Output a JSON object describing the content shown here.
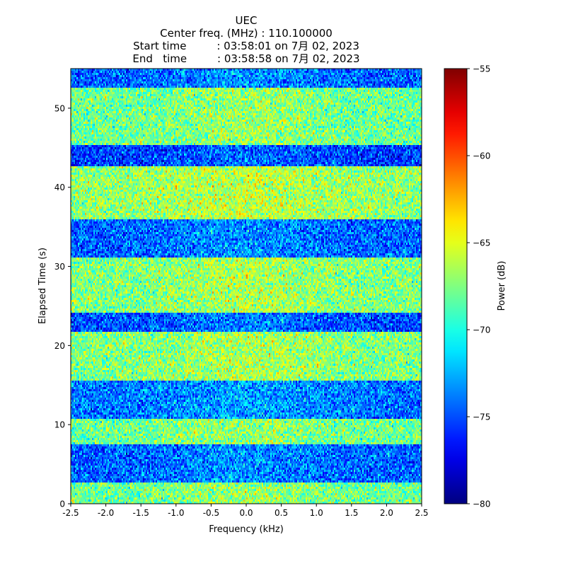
{
  "chart_data": {
    "type": "heatmap",
    "title_lines": [
      "UEC",
      "Center freq. (MHz) : 110.100000",
      "Start time         : 03:58:01 on 7月 02, 2023",
      "End   time         : 03:58:58 on 7月 02, 2023"
    ],
    "xlabel": "Frequency (kHz)",
    "ylabel": "Elapsed Time (s)",
    "xlim": [
      -2.5,
      2.5
    ],
    "ylim": [
      0,
      55
    ],
    "xticks": [
      "-2.5",
      "-2.0",
      "-1.5",
      "-1.0",
      "-0.5",
      "0.0",
      "0.5",
      "1.0",
      "1.5",
      "2.0",
      "2.5"
    ],
    "xtick_values": [
      -2.5,
      -2.0,
      -1.5,
      -1.0,
      -0.5,
      0.0,
      0.5,
      1.0,
      1.5,
      2.0,
      2.5
    ],
    "yticks": [
      "0",
      "10",
      "20",
      "30",
      "40",
      "50"
    ],
    "ytick_values": [
      0,
      10,
      20,
      30,
      40,
      50
    ],
    "colorbar": {
      "label": "Power (dB)",
      "range": [
        -80,
        -55
      ],
      "colormap": "jet",
      "ticks": [
        "−80",
        "−75",
        "−70",
        "−65",
        "−60",
        "−55"
      ],
      "tick_values": [
        -80,
        -75,
        -70,
        -65,
        -60,
        -55
      ]
    },
    "time_bands": [
      {
        "start": 0,
        "end": 2.6,
        "mean_db": -68
      },
      {
        "start": 2.6,
        "end": 7.6,
        "mean_db": -74.5
      },
      {
        "start": 7.6,
        "end": 10.6,
        "mean_db": -68
      },
      {
        "start": 10.6,
        "end": 15.6,
        "mean_db": -74
      },
      {
        "start": 15.6,
        "end": 21.6,
        "mean_db": -67.5
      },
      {
        "start": 21.6,
        "end": 24.2,
        "mean_db": -75
      },
      {
        "start": 24.2,
        "end": 31,
        "mean_db": -67.5
      },
      {
        "start": 31,
        "end": 36,
        "mean_db": -74.5
      },
      {
        "start": 36,
        "end": 42.6,
        "mean_db": -67
      },
      {
        "start": 42.6,
        "end": 45.4,
        "mean_db": -75.5
      },
      {
        "start": 45.4,
        "end": 52.6,
        "mean_db": -68
      },
      {
        "start": 52.6,
        "end": 55,
        "mean_db": -74.5
      }
    ]
  }
}
